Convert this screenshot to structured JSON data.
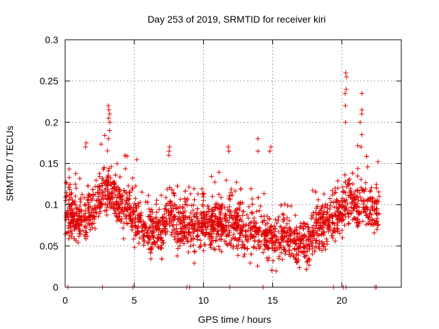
{
  "chart_data": {
    "type": "scatter",
    "title": "Day 253 of 2019, SRMTID for receiver kiri",
    "xlabel": "GPS time / hours",
    "ylabel": "SRMTID / TECUs",
    "xlim": [
      0,
      24.3
    ],
    "ylim": [
      0,
      0.3
    ],
    "grid": true,
    "marker": "+",
    "color": "#e00000",
    "xticks": [
      0,
      5,
      10,
      15,
      20
    ],
    "xtick_labels": [
      "0",
      "5",
      "10",
      "15",
      "20"
    ],
    "yticks": [
      0,
      0.05,
      0.1,
      0.15,
      0.2,
      0.25,
      0.3
    ],
    "ytick_labels": [
      "0",
      "0.05",
      "0.1",
      "0.15",
      "0.2",
      "0.25",
      "0.3"
    ],
    "series": [
      {
        "name": "SRMTID",
        "trend": {
          "x": [
            0,
            0.5,
            1,
            2,
            2.5,
            3,
            3.5,
            4,
            4.5,
            5,
            6,
            7,
            7.5,
            8,
            9,
            10,
            11,
            12,
            12.5,
            13,
            14,
            15,
            16,
            17,
            17.5,
            18,
            19,
            20,
            20.5,
            21,
            21.5,
            22,
            22.7
          ],
          "y": [
            0.095,
            0.085,
            0.08,
            0.095,
            0.11,
            0.115,
            0.12,
            0.1,
            0.095,
            0.085,
            0.07,
            0.07,
            0.09,
            0.08,
            0.075,
            0.075,
            0.075,
            0.08,
            0.075,
            0.065,
            0.07,
            0.06,
            0.06,
            0.055,
            0.05,
            0.07,
            0.075,
            0.095,
            0.1,
            0.1,
            0.1,
            0.095,
            0.09
          ],
          "spread": 0.03
        },
        "spikes": [
          {
            "x": 3.2,
            "y": [
              0.22,
              0.215,
              0.21,
              0.205,
              0.2,
              0.19,
              0.18
            ]
          },
          {
            "x": 20.3,
            "y": [
              0.26,
              0.255,
              0.24,
              0.235,
              0.22,
              0.2
            ]
          },
          {
            "x": 21.4,
            "y": [
              0.235,
              0.215,
              0.21,
              0.2,
              0.185,
              0.17
            ]
          },
          {
            "x": 14.0,
            "y": [
              0.18,
              0.165
            ]
          },
          {
            "x": 14.8,
            "y": [
              0.17,
              0.165
            ]
          },
          {
            "x": 1.5,
            "y": [
              0.175,
              0.17
            ]
          },
          {
            "x": 7.5,
            "y": [
              0.17,
              0.165,
              0.16
            ]
          },
          {
            "x": 11.8,
            "y": [
              0.17,
              0.165
            ]
          }
        ],
        "zero_points_x": [
          0.2,
          2.7,
          4.9,
          8.8,
          9.0,
          11.9,
          14.3,
          19.4,
          20.1,
          20.3,
          22.4,
          22.5
        ]
      }
    ]
  }
}
